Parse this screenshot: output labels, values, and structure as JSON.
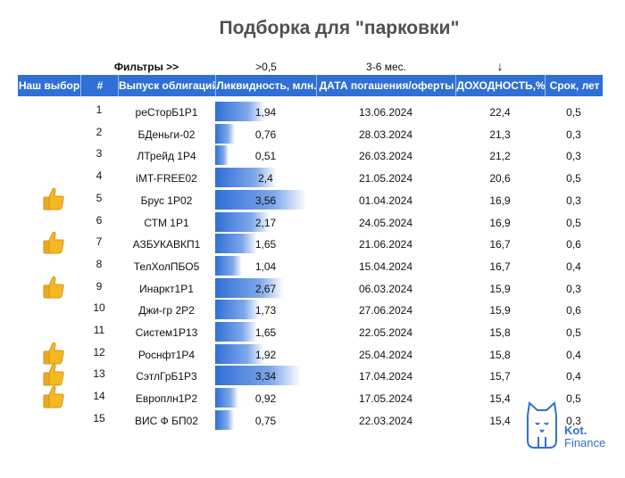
{
  "title": "Подборка для \"парковки\"",
  "filters": {
    "label": "Фильтры >>",
    "liquidity": ">0,5",
    "maturity": "3-6 мес.",
    "sort_arrow": "↓"
  },
  "headers": {
    "choice": "Наш выбор",
    "num": "#",
    "bond": "Выпуск облигаций",
    "liquidity": "Ликвидность, млн.",
    "date": "ДАТА погашения/оферты",
    "yield": "ДОХОДНОСТЬ,%",
    "term": "Срок, лет"
  },
  "rows": [
    {
      "num": "1",
      "bond": "реСторБ1Р1",
      "liquidity": "1,94",
      "date": "13.06.2024",
      "yield": "22,4",
      "term": "0,5",
      "liq_value": 1.94,
      "pick": false
    },
    {
      "num": "2",
      "bond": "БДеньги-02",
      "liquidity": "0,76",
      "date": "28.03.2024",
      "yield": "21,3",
      "term": "0,3",
      "liq_value": 0.76,
      "pick": false
    },
    {
      "num": "3",
      "bond": "ЛТрейд 1Р4",
      "liquidity": "0,51",
      "date": "26.03.2024",
      "yield": "21,2",
      "term": "0,3",
      "liq_value": 0.51,
      "pick": false
    },
    {
      "num": "4",
      "bond": "iMT-FREE02",
      "liquidity": "2,4",
      "date": "21.05.2024",
      "yield": "20,6",
      "term": "0,5",
      "liq_value": 2.4,
      "pick": false
    },
    {
      "num": "5",
      "bond": "Брус 1Р02",
      "liquidity": "3,56",
      "date": "01.04.2024",
      "yield": "16,9",
      "term": "0,3",
      "liq_value": 3.56,
      "pick": true
    },
    {
      "num": "6",
      "bond": "СТМ 1Р1",
      "liquidity": "2,17",
      "date": "24.05.2024",
      "yield": "16,9",
      "term": "0,5",
      "liq_value": 2.17,
      "pick": false
    },
    {
      "num": "7",
      "bond": "АЗБУКАВКП1",
      "liquidity": "1,65",
      "date": "21.06.2024",
      "yield": "16,7",
      "term": "0,6",
      "liq_value": 1.65,
      "pick": true
    },
    {
      "num": "8",
      "bond": "ТелХолПБО5",
      "liquidity": "1,04",
      "date": "15.04.2024",
      "yield": "16,7",
      "term": "0,4",
      "liq_value": 1.04,
      "pick": false
    },
    {
      "num": "9",
      "bond": "Инаркт1Р1",
      "liquidity": "2,67",
      "date": "06.03.2024",
      "yield": "15,9",
      "term": "0,3",
      "liq_value": 2.67,
      "pick": true
    },
    {
      "num": "10",
      "bond": "Джи-гр 2Р2",
      "liquidity": "1,73",
      "date": "27.06.2024",
      "yield": "15,9",
      "term": "0,6",
      "liq_value": 1.73,
      "pick": false
    },
    {
      "num": "11",
      "bond": "Систем1Р13",
      "liquidity": "1,65",
      "date": "22.05.2024",
      "yield": "15,8",
      "term": "0,5",
      "liq_value": 1.65,
      "pick": false
    },
    {
      "num": "12",
      "bond": "Роснфт1Р4",
      "liquidity": "1,92",
      "date": "25.04.2024",
      "yield": "15,8",
      "term": "0,4",
      "liq_value": 1.92,
      "pick": true
    },
    {
      "num": "13",
      "bond": "СэтлГрБ1Р3",
      "liquidity": "3,34",
      "date": "17.04.2024",
      "yield": "15,7",
      "term": "0,4",
      "liq_value": 3.34,
      "pick": true
    },
    {
      "num": "14",
      "bond": "Европлн1Р2",
      "liquidity": "0,92",
      "date": "17.05.2024",
      "yield": "15,4",
      "term": "0,5",
      "liq_value": 0.92,
      "pick": true
    },
    {
      "num": "15",
      "bond": "ВИС Ф БП02",
      "liquidity": "0,75",
      "date": "22.03.2024",
      "yield": "15,4",
      "term": "0,3",
      "liq_value": 0.75,
      "pick": false
    }
  ],
  "logo": {
    "line1": "Kot.",
    "line2": "Finance"
  },
  "colors": {
    "header_bg": "#2f6fd6",
    "title": "#505050",
    "accent": "#2f6fd6"
  }
}
